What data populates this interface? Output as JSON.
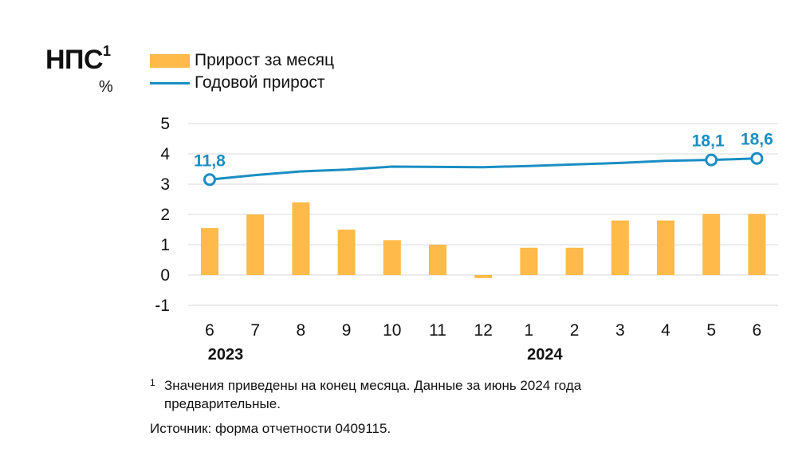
{
  "header": {
    "title": "НПС",
    "title_sup": "1",
    "unit": "%"
  },
  "legend": {
    "bar_label": "Прирост за месяц",
    "line_label": "Годовой прирост"
  },
  "chart_data": {
    "type": "bar",
    "categories": [
      "6",
      "7",
      "8",
      "9",
      "10",
      "11",
      "12",
      "1",
      "2",
      "3",
      "4",
      "5",
      "6"
    ],
    "year_labels": [
      {
        "label": "2023",
        "category_index": 0
      },
      {
        "label": "2024",
        "category_index": 7
      }
    ],
    "series": [
      {
        "name": "Прирост за месяц",
        "type": "bar",
        "color": "#FFBA49",
        "values": [
          1.55,
          2.0,
          2.4,
          1.5,
          1.15,
          1.0,
          -0.1,
          0.9,
          0.9,
          1.8,
          1.8,
          2.02,
          2.02
        ]
      },
      {
        "name": "Годовой прирост",
        "type": "line",
        "color": "#1B8EC3",
        "values": [
          3.15,
          3.3,
          3.42,
          3.48,
          3.58,
          3.57,
          3.56,
          3.6,
          3.65,
          3.7,
          3.77,
          3.8,
          3.85
        ]
      }
    ],
    "point_labels": [
      {
        "category_index": 0,
        "label": "11,8"
      },
      {
        "category_index": 11,
        "label": "18,1"
      },
      {
        "category_index": 12,
        "label": "18,6"
      }
    ],
    "y_ticks": [
      5,
      4,
      3,
      2,
      1,
      0,
      -1
    ],
    "ylim": [
      -1,
      5
    ],
    "grid": true
  },
  "footnote": {
    "mark": "1",
    "text": "Значения приведены на конец месяца. Данные за июнь 2024 года предварительные."
  },
  "source": "Источник: форма отчетности 0409115."
}
